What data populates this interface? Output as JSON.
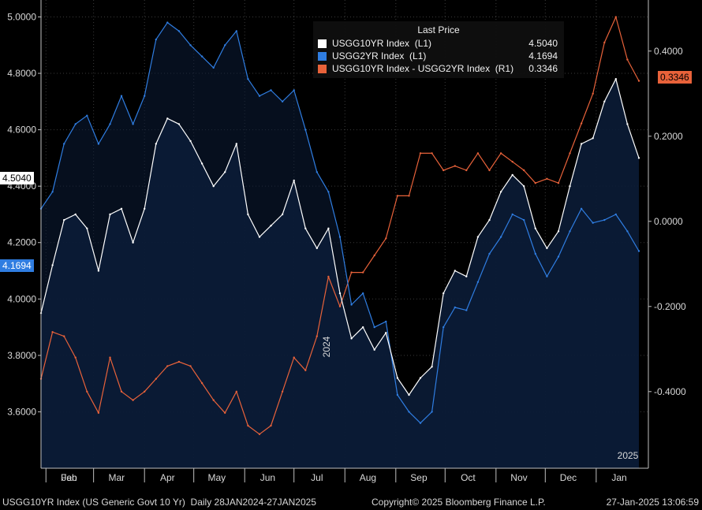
{
  "footer": {
    "left": "USGG10YR Index (US Generic Govt 10 Yr)  Daily 28JAN2024-27JAN2025",
    "center": "Copyright© 2025 Bloomberg Finance L.P.",
    "right": "27-Jan-2025 13:06:59"
  },
  "legend": {
    "title": "Last Price",
    "rows": [
      {
        "name": "USGG10YR Index  (L1)",
        "value": "4.5040",
        "color": "#ffffff"
      },
      {
        "name": "USGG2YR Index  (L1)",
        "value": "4.1694",
        "color": "#2f7de1"
      },
      {
        "name": "USGG10YR Index - USGG2YR Index  (R1)",
        "value": "0.3346",
        "color": "#e8623a"
      }
    ]
  },
  "badges": {
    "left_10yr": "4.5040",
    "left_2yr": "4.1694",
    "right_spread": "0.3346"
  },
  "colors": {
    "background": "#000000",
    "area_fill": "#0b1c36",
    "ten_year": "#ffffff",
    "two_year": "#2f7de1",
    "spread": "#e8623a"
  },
  "chart_data": {
    "type": "line",
    "x_labels": [
      "Jan",
      "Feb",
      "Mar",
      "Apr",
      "May",
      "Jun",
      "Jul",
      "Aug",
      "Sep",
      "Oct",
      "Nov",
      "Dec",
      "Jan"
    ],
    "year_labels": [
      "2024",
      "2025"
    ],
    "left_axis": {
      "ticks": [
        "3.6000",
        "3.8000",
        "4.0000",
        "4.2000",
        "4.4000",
        "4.6000",
        "4.8000",
        "5.0000"
      ],
      "range": [
        3.4,
        5.06
      ]
    },
    "right_axis": {
      "ticks": [
        "-0.4000",
        "-0.2000",
        "0.0000",
        "0.2000",
        "0.4000"
      ],
      "range": [
        -0.58,
        0.52
      ]
    },
    "grid": true,
    "legend_position": "top-center",
    "dates": [
      "2024-01-29",
      "2024-02-05",
      "2024-02-12",
      "2024-02-19",
      "2024-02-26",
      "2024-03-04",
      "2024-03-11",
      "2024-03-18",
      "2024-03-25",
      "2024-04-01",
      "2024-04-08",
      "2024-04-15",
      "2024-04-22",
      "2024-04-29",
      "2024-05-06",
      "2024-05-13",
      "2024-05-20",
      "2024-05-27",
      "2024-06-03",
      "2024-06-10",
      "2024-06-17",
      "2024-06-24",
      "2024-07-01",
      "2024-07-08",
      "2024-07-15",
      "2024-07-22",
      "2024-07-29",
      "2024-08-05",
      "2024-08-12",
      "2024-08-19",
      "2024-08-26",
      "2024-09-02",
      "2024-09-09",
      "2024-09-16",
      "2024-09-23",
      "2024-09-30",
      "2024-10-07",
      "2024-10-14",
      "2024-10-21",
      "2024-10-28",
      "2024-11-04",
      "2024-11-11",
      "2024-11-18",
      "2024-11-25",
      "2024-12-02",
      "2024-12-09",
      "2024-12-16",
      "2024-12-23",
      "2024-12-30",
      "2025-01-06",
      "2025-01-13",
      "2025-01-20",
      "2025-01-27"
    ],
    "series": [
      {
        "name": "USGG10YR Index  (L1)",
        "axis": "left",
        "values": [
          3.95,
          4.12,
          4.28,
          4.3,
          4.25,
          4.1,
          4.3,
          4.32,
          4.2,
          4.32,
          4.55,
          4.64,
          4.62,
          4.56,
          4.48,
          4.4,
          4.45,
          4.55,
          4.3,
          4.22,
          4.26,
          4.3,
          4.42,
          4.25,
          4.18,
          4.25,
          4.02,
          3.86,
          3.9,
          3.82,
          3.88,
          3.72,
          3.66,
          3.72,
          3.76,
          4.02,
          4.1,
          4.08,
          4.22,
          4.28,
          4.38,
          4.44,
          4.4,
          4.25,
          4.18,
          4.24,
          4.4,
          4.55,
          4.57,
          4.7,
          4.78,
          4.62,
          4.5
        ]
      },
      {
        "name": "USGG2YR Index  (L1)",
        "axis": "left",
        "values": [
          4.32,
          4.38,
          4.55,
          4.62,
          4.65,
          4.55,
          4.62,
          4.72,
          4.62,
          4.72,
          4.92,
          4.98,
          4.95,
          4.9,
          4.86,
          4.82,
          4.9,
          4.95,
          4.78,
          4.72,
          4.74,
          4.7,
          4.74,
          4.6,
          4.45,
          4.38,
          4.22,
          3.98,
          4.02,
          3.9,
          3.92,
          3.66,
          3.6,
          3.56,
          3.6,
          3.9,
          3.97,
          3.96,
          4.06,
          4.16,
          4.22,
          4.3,
          4.28,
          4.16,
          4.08,
          4.15,
          4.24,
          4.32,
          4.27,
          4.28,
          4.3,
          4.24,
          4.17
        ]
      },
      {
        "name": "USGG10YR Index - USGG2YR Index  (R1)",
        "axis": "right",
        "values": [
          -0.37,
          -0.26,
          -0.27,
          -0.32,
          -0.4,
          -0.45,
          -0.32,
          -0.4,
          -0.42,
          -0.4,
          -0.37,
          -0.34,
          -0.33,
          -0.34,
          -0.38,
          -0.42,
          -0.45,
          -0.4,
          -0.48,
          -0.5,
          -0.48,
          -0.4,
          -0.32,
          -0.35,
          -0.27,
          -0.13,
          -0.2,
          -0.12,
          -0.12,
          -0.08,
          -0.04,
          0.06,
          0.06,
          0.16,
          0.16,
          0.12,
          0.13,
          0.12,
          0.16,
          0.12,
          0.16,
          0.14,
          0.12,
          0.09,
          0.1,
          0.09,
          0.16,
          0.23,
          0.3,
          0.42,
          0.48,
          0.38,
          0.33
        ]
      }
    ]
  }
}
